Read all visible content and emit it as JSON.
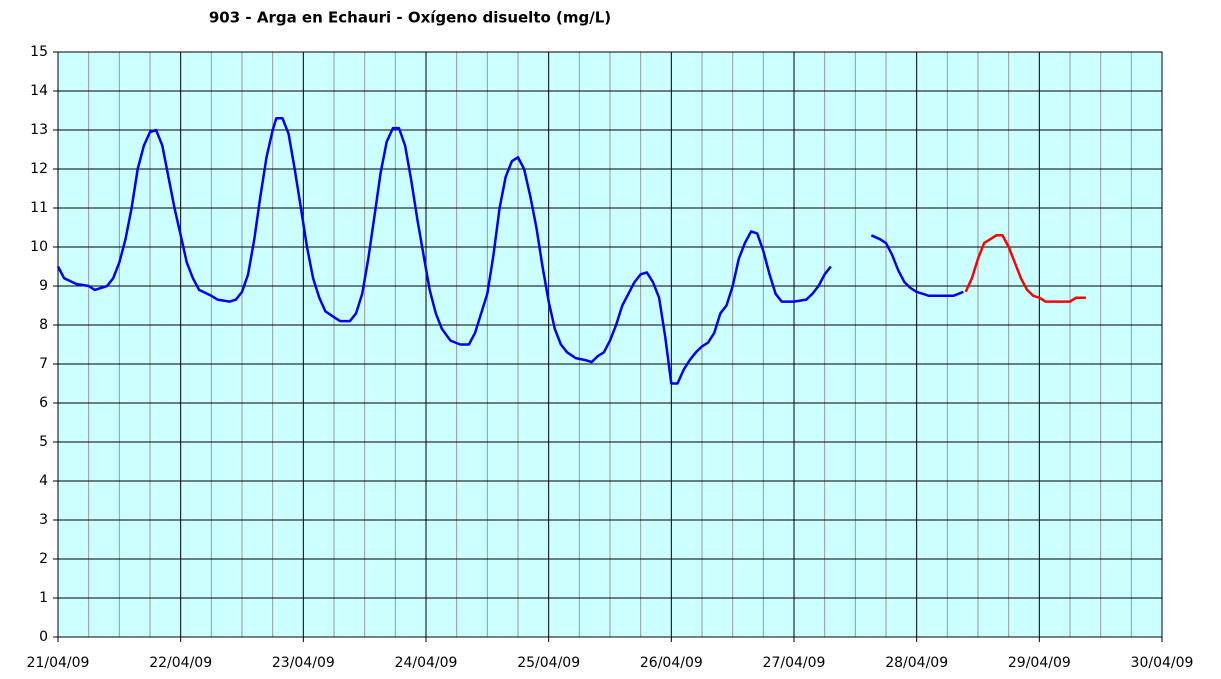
{
  "chart_data": {
    "type": "line",
    "title": "903 - Arga en Echauri - Oxígeno disuelto (mg/L)",
    "xlim": [
      0,
      9
    ],
    "xticks": [
      {
        "value": 0,
        "label": "21/04/09"
      },
      {
        "value": 1,
        "label": "22/04/09"
      },
      {
        "value": 2,
        "label": "23/04/09"
      },
      {
        "value": 3,
        "label": "24/04/09"
      },
      {
        "value": 4,
        "label": "25/04/09"
      },
      {
        "value": 5,
        "label": "26/04/09"
      },
      {
        "value": 6,
        "label": "27/04/09"
      },
      {
        "value": 7,
        "label": "28/04/09"
      },
      {
        "value": 8,
        "label": "29/04/09"
      },
      {
        "value": 9,
        "label": "30/04/09"
      }
    ],
    "xminorticks": [
      0.25,
      0.5,
      0.75,
      1.25,
      1.5,
      1.75,
      2.25,
      2.5,
      2.75,
      3.25,
      3.5,
      3.75,
      4.25,
      4.5,
      4.75,
      5.25,
      5.5,
      5.75,
      6.25,
      6.5,
      6.75,
      7.25,
      7.5,
      7.75,
      8.25,
      8.5,
      8.75
    ],
    "ylim": [
      0,
      15
    ],
    "yticks": [
      0,
      1,
      2,
      3,
      4,
      5,
      6,
      7,
      8,
      9,
      10,
      11,
      12,
      13,
      14,
      15
    ],
    "grid": true,
    "background": "#ccffff",
    "series": [
      {
        "color": "#0000ff",
        "x": [
          0,
          0.05,
          0.15,
          0.25,
          0.3,
          0.4,
          0.45,
          0.5,
          0.55,
          0.6,
          0.65,
          0.7,
          0.75,
          0.8,
          0.85,
          0.9,
          0.95,
          1,
          1.05,
          1.1,
          1.15,
          1.25,
          1.3,
          1.4,
          1.45,
          1.5,
          1.55,
          1.6,
          1.65,
          1.7,
          1.75,
          1.78,
          1.83,
          1.88,
          1.93,
          1.98,
          2.03,
          2.08,
          2.13,
          2.18,
          2.25,
          2.3,
          2.38,
          2.43,
          2.48,
          2.53,
          2.58,
          2.63,
          2.68,
          2.73,
          2.78,
          2.83,
          2.88,
          2.93,
          2.98,
          3.03,
          3.08,
          3.13,
          3.2,
          3.28,
          3.35,
          3.4,
          3.45,
          3.5,
          3.55,
          3.6,
          3.65,
          3.7,
          3.75,
          3.8,
          3.85,
          3.9,
          3.95,
          4,
          4.05,
          4.1,
          4.15,
          4.22,
          4.3,
          4.35,
          4.4,
          4.45,
          4.5,
          4.55,
          4.6,
          4.65,
          4.7,
          4.75,
          4.8,
          4.85,
          4.9,
          4.95,
          5,
          5.05,
          5.1,
          5.15,
          5.2,
          5.25,
          5.3,
          5.35,
          5.4,
          5.45,
          5.5,
          5.55,
          5.6,
          5.65,
          5.7,
          5.75,
          5.8,
          5.85,
          5.9,
          6,
          6.1,
          6.15,
          6.2,
          6.25,
          6.3,
          6.45,
          6.63,
          6.7,
          6.75,
          6.8,
          6.85,
          6.9,
          6.95,
          7,
          7.05,
          7.1,
          7.2,
          7.3,
          7.38
        ],
        "values": [
          9.5,
          9.2,
          9.05,
          9.0,
          8.9,
          9.0,
          9.2,
          9.6,
          10.2,
          11.0,
          12.0,
          12.6,
          12.95,
          13.0,
          12.6,
          11.8,
          11.0,
          10.3,
          9.6,
          9.2,
          8.9,
          8.75,
          8.65,
          8.6,
          8.65,
          8.85,
          9.3,
          10.2,
          11.3,
          12.3,
          13.0,
          13.3,
          13.3,
          12.9,
          12.0,
          11.0,
          10.0,
          9.2,
          8.7,
          8.35,
          8.2,
          8.1,
          8.1,
          8.3,
          8.8,
          9.7,
          10.8,
          11.9,
          12.7,
          13.05,
          13.05,
          12.6,
          11.7,
          10.7,
          9.8,
          8.9,
          8.3,
          7.9,
          7.6,
          7.5,
          7.5,
          7.8,
          8.3,
          8.8,
          9.8,
          11.0,
          11.8,
          12.2,
          12.3,
          12.0,
          11.3,
          10.5,
          9.5,
          8.6,
          7.9,
          7.5,
          7.3,
          7.15,
          7.1,
          7.05,
          7.2,
          7.3,
          7.6,
          8.0,
          8.5,
          8.8,
          9.1,
          9.3,
          9.35,
          9.1,
          8.7,
          7.7,
          6.5,
          6.5,
          6.85,
          7.1,
          7.3,
          7.45,
          7.55,
          7.8,
          8.3,
          8.5,
          9.0,
          9.7,
          10.1,
          10.4,
          10.35,
          9.9,
          9.3,
          8.8,
          8.6,
          8.6,
          8.65,
          8.8,
          9.0,
          9.3,
          9.5,
          null,
          10.3,
          10.2,
          10.1,
          9.8,
          9.4,
          9.1,
          8.95,
          8.85,
          8.8,
          8.75,
          8.75,
          8.75,
          8.85
        ]
      },
      {
        "color": "#ff0000",
        "x": [
          7.4,
          7.45,
          7.5,
          7.55,
          7.6,
          7.65,
          7.7,
          7.75,
          7.8,
          7.85,
          7.9,
          7.95,
          8,
          8.05,
          8.15,
          8.25,
          8.3,
          8.38
        ],
        "values": [
          8.85,
          9.2,
          9.7,
          10.1,
          10.2,
          10.3,
          10.3,
          10.0,
          9.6,
          9.2,
          8.9,
          8.75,
          8.7,
          8.6,
          8.6,
          8.6,
          8.7,
          8.7
        ]
      }
    ]
  }
}
